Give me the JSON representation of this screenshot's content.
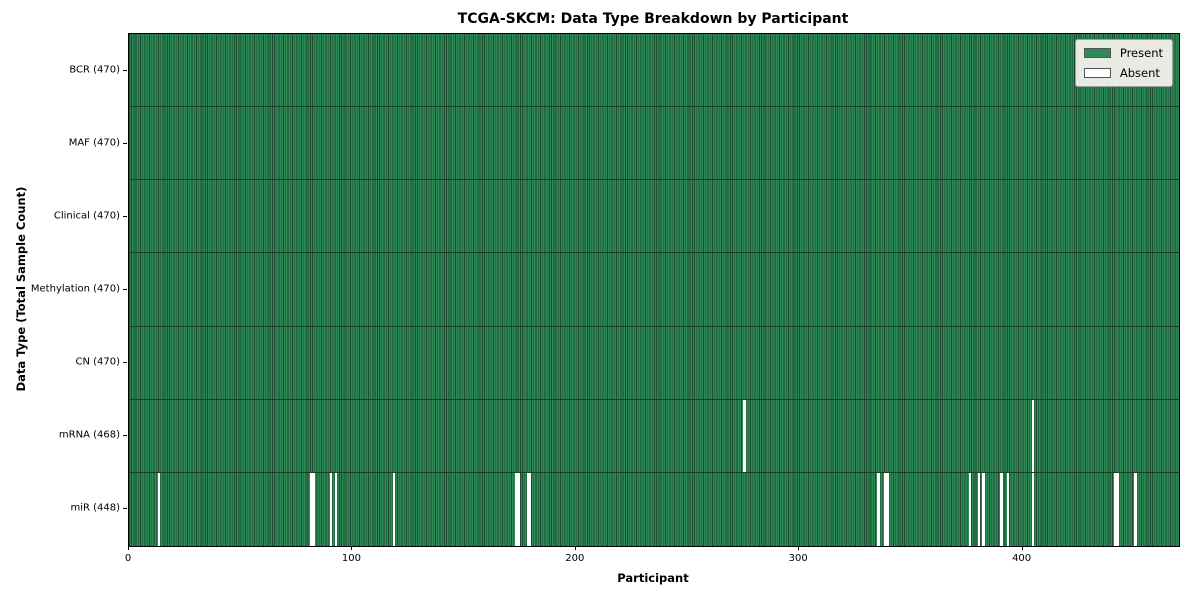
{
  "chart_data": {
    "type": "heatmap",
    "title": "TCGA-SKCM: Data Type Breakdown by Participant",
    "xlabel": "Participant",
    "ylabel": "Data Type (Total Sample Count)",
    "n_participants": 470,
    "xlim": [
      0,
      470
    ],
    "x_ticks": [
      0,
      100,
      200,
      300,
      400
    ],
    "grid": false,
    "rows": [
      {
        "name": "BCR",
        "label": "BCR (470)",
        "total": 470,
        "absent": []
      },
      {
        "name": "MAF",
        "label": "MAF (470)",
        "total": 470,
        "absent": []
      },
      {
        "name": "Clinical",
        "label": "Clinical (470)",
        "total": 470,
        "absent": []
      },
      {
        "name": "Methylation",
        "label": "Methylation (470)",
        "total": 470,
        "absent": []
      },
      {
        "name": "CN",
        "label": "CN (470)",
        "total": 470,
        "absent": []
      },
      {
        "name": "mRNA",
        "label": "mRNA (468)",
        "total": 468,
        "absent": [
          275,
          404
        ]
      },
      {
        "name": "miR",
        "label": "miR (448)",
        "total": 448,
        "absent": [
          13,
          81,
          82,
          90,
          92,
          118,
          173,
          174,
          178,
          179,
          335,
          338,
          339,
          376,
          380,
          382,
          390,
          393,
          404,
          441,
          442,
          450
        ]
      }
    ],
    "legend": {
      "position": "upper right",
      "entries": [
        {
          "label": "Present",
          "color": "#2e8b57"
        },
        {
          "label": "Absent",
          "color": "#ffffff"
        }
      ]
    },
    "colors": {
      "present": "#2e8b57",
      "bar_edge": "#1b4c30",
      "absent": "#ffffff",
      "row_divider": "#173f27",
      "swatch_edge": "#555555"
    }
  }
}
